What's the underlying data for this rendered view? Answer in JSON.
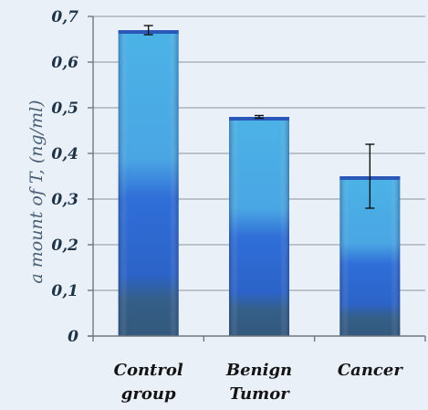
{
  "chart_data": {
    "type": "bar",
    "categories": [
      "Control group",
      "Benign Tumor",
      "Cancer"
    ],
    "category_lines": [
      [
        "Control",
        "group"
      ],
      [
        "Benign",
        "Tumor"
      ],
      [
        "Cancer"
      ]
    ],
    "values": [
      0.67,
      0.48,
      0.35
    ],
    "error_bars": [
      0.01,
      0.003,
      0.07
    ],
    "ylabel": "a mount of  T,     (ng/ml)",
    "ylim": [
      0,
      0.7
    ],
    "yticks": [
      0,
      0.1,
      0.2,
      0.3,
      0.4,
      0.5,
      0.6,
      0.7
    ],
    "ytick_labels": [
      "0",
      "0,1",
      "0,2",
      "0,3",
      "0,4",
      "0,5",
      "0,6",
      "0,7"
    ],
    "grid": true,
    "colors": {
      "bar_top": "#4bb3e6",
      "bar_mid": "#2b68d6",
      "bar_bottom": "#335f87",
      "background": "#eaf0f8"
    }
  }
}
